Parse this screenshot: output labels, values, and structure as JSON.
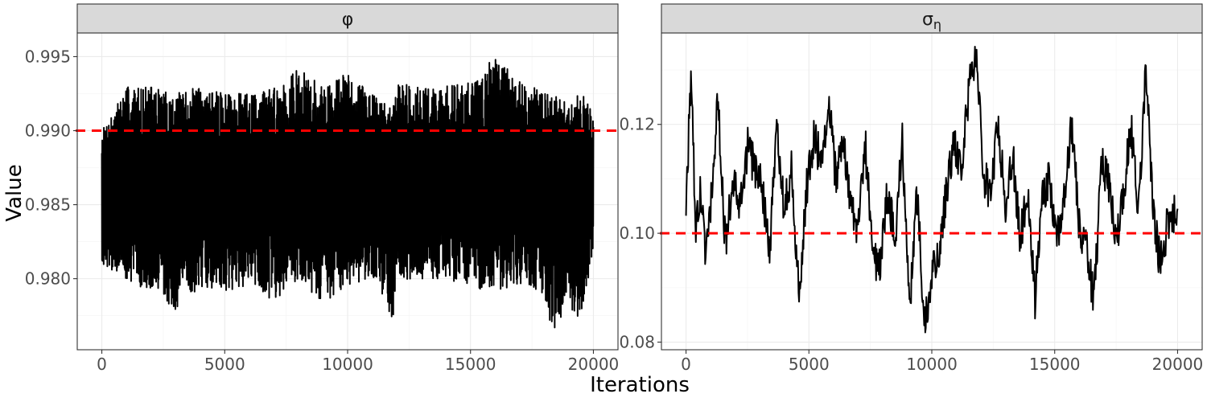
{
  "chart_data": {
    "type": "line",
    "xlabel": "Iterations",
    "ylabel": "Value",
    "legend": "none",
    "grid": true,
    "panels": [
      {
        "strip_label": "φ",
        "xlim": [
          -1000,
          21000
        ],
        "ylim": [
          0.9752,
          0.9966
        ],
        "x_ticks": [
          0,
          5000,
          10000,
          15000,
          20000
        ],
        "x_tick_labels": [
          "0",
          "5000",
          "10000",
          "15000",
          "20000"
        ],
        "y_ticks": [
          0.98,
          0.985,
          0.99,
          0.995
        ],
        "y_tick_labels": [
          "0.980",
          "0.985",
          "0.990",
          "0.995"
        ],
        "reference_line": 0.99,
        "reference_color": "#ff0000",
        "series": [
          {
            "n_iterations": 20000,
            "mean": 0.9868,
            "min": 0.9761,
            "max": 0.9949,
            "x_extremes": [
              0,
              1000,
              2000,
              3000,
              4000,
              5000,
              6000,
              7000,
              8000,
              9000,
              10000,
              11000,
              11850,
              12000,
              13000,
              14000,
              15000,
              15950,
              17000,
              18000,
              18350,
              19000,
              19500,
              20000
            ],
            "y_high": [
              0.99,
              0.993,
              0.993,
              0.9925,
              0.993,
              0.9925,
              0.9925,
              0.993,
              0.9942,
              0.993,
              0.994,
              0.9925,
              0.9915,
              0.9935,
              0.993,
              0.993,
              0.9935,
              0.9949,
              0.9935,
              0.9925,
              0.9925,
              0.992,
              0.9928,
              0.991
            ],
            "y_low": [
              0.981,
              0.98,
              0.979,
              0.9778,
              0.9795,
              0.979,
              0.9795,
              0.9785,
              0.98,
              0.9783,
              0.9795,
              0.98,
              0.9765,
              0.979,
              0.98,
              0.98,
              0.9795,
              0.979,
              0.9795,
              0.979,
              0.9761,
              0.978,
              0.977,
              0.982
            ]
          }
        ],
        "color": "#000000"
      },
      {
        "strip_label": "σ",
        "strip_label_subscript": "η",
        "xlim": [
          -1000,
          21000
        ],
        "ylim": [
          0.0786,
          0.1368
        ],
        "x_ticks": [
          0,
          5000,
          10000,
          15000,
          20000
        ],
        "x_tick_labels": [
          "0",
          "5000",
          "10000",
          "15000",
          "20000"
        ],
        "y_ticks": [
          0.08,
          0.1,
          0.12
        ],
        "y_tick_labels": [
          "0.08",
          "0.10",
          "0.12"
        ],
        "reference_line": 0.1,
        "reference_color": "#ff0000",
        "series": [
          {
            "x": [
              0,
              200,
              400,
              600,
              800,
              1000,
              1300,
              1600,
              1900,
              2200,
              2500,
              2800,
              3100,
              3400,
              3700,
              4000,
              4300,
              4600,
              4900,
              5200,
              5500,
              5800,
              6100,
              6400,
              6700,
              7000,
              7300,
              7600,
              7900,
              8200,
              8500,
              8800,
              9100,
              9400,
              9700,
              10000,
              10300,
              10600,
              10900,
              11200,
              11500,
              11800,
              12100,
              12400,
              12700,
              13000,
              13300,
              13600,
              13900,
              14200,
              14500,
              14800,
              15100,
              15400,
              15700,
              16000,
              16300,
              16600,
              16900,
              17200,
              17500,
              17800,
              18100,
              18400,
              18700,
              19000,
              19300,
              19600,
              20000
            ],
            "y": [
              0.105,
              0.129,
              0.1,
              0.108,
              0.095,
              0.105,
              0.124,
              0.098,
              0.11,
              0.104,
              0.116,
              0.112,
              0.108,
              0.097,
              0.12,
              0.104,
              0.112,
              0.088,
              0.108,
              0.118,
              0.113,
              0.124,
              0.11,
              0.117,
              0.105,
              0.101,
              0.116,
              0.096,
              0.093,
              0.108,
              0.099,
              0.117,
              0.087,
              0.107,
              0.084,
              0.092,
              0.097,
              0.108,
              0.116,
              0.112,
              0.126,
              0.133,
              0.111,
              0.107,
              0.12,
              0.105,
              0.114,
              0.099,
              0.107,
              0.088,
              0.107,
              0.11,
              0.099,
              0.108,
              0.12,
              0.101,
              0.098,
              0.087,
              0.113,
              0.109,
              0.098,
              0.107,
              0.12,
              0.103,
              0.131,
              0.104,
              0.094,
              0.102,
              0.105
            ]
          }
        ],
        "color": "#000000"
      }
    ]
  }
}
